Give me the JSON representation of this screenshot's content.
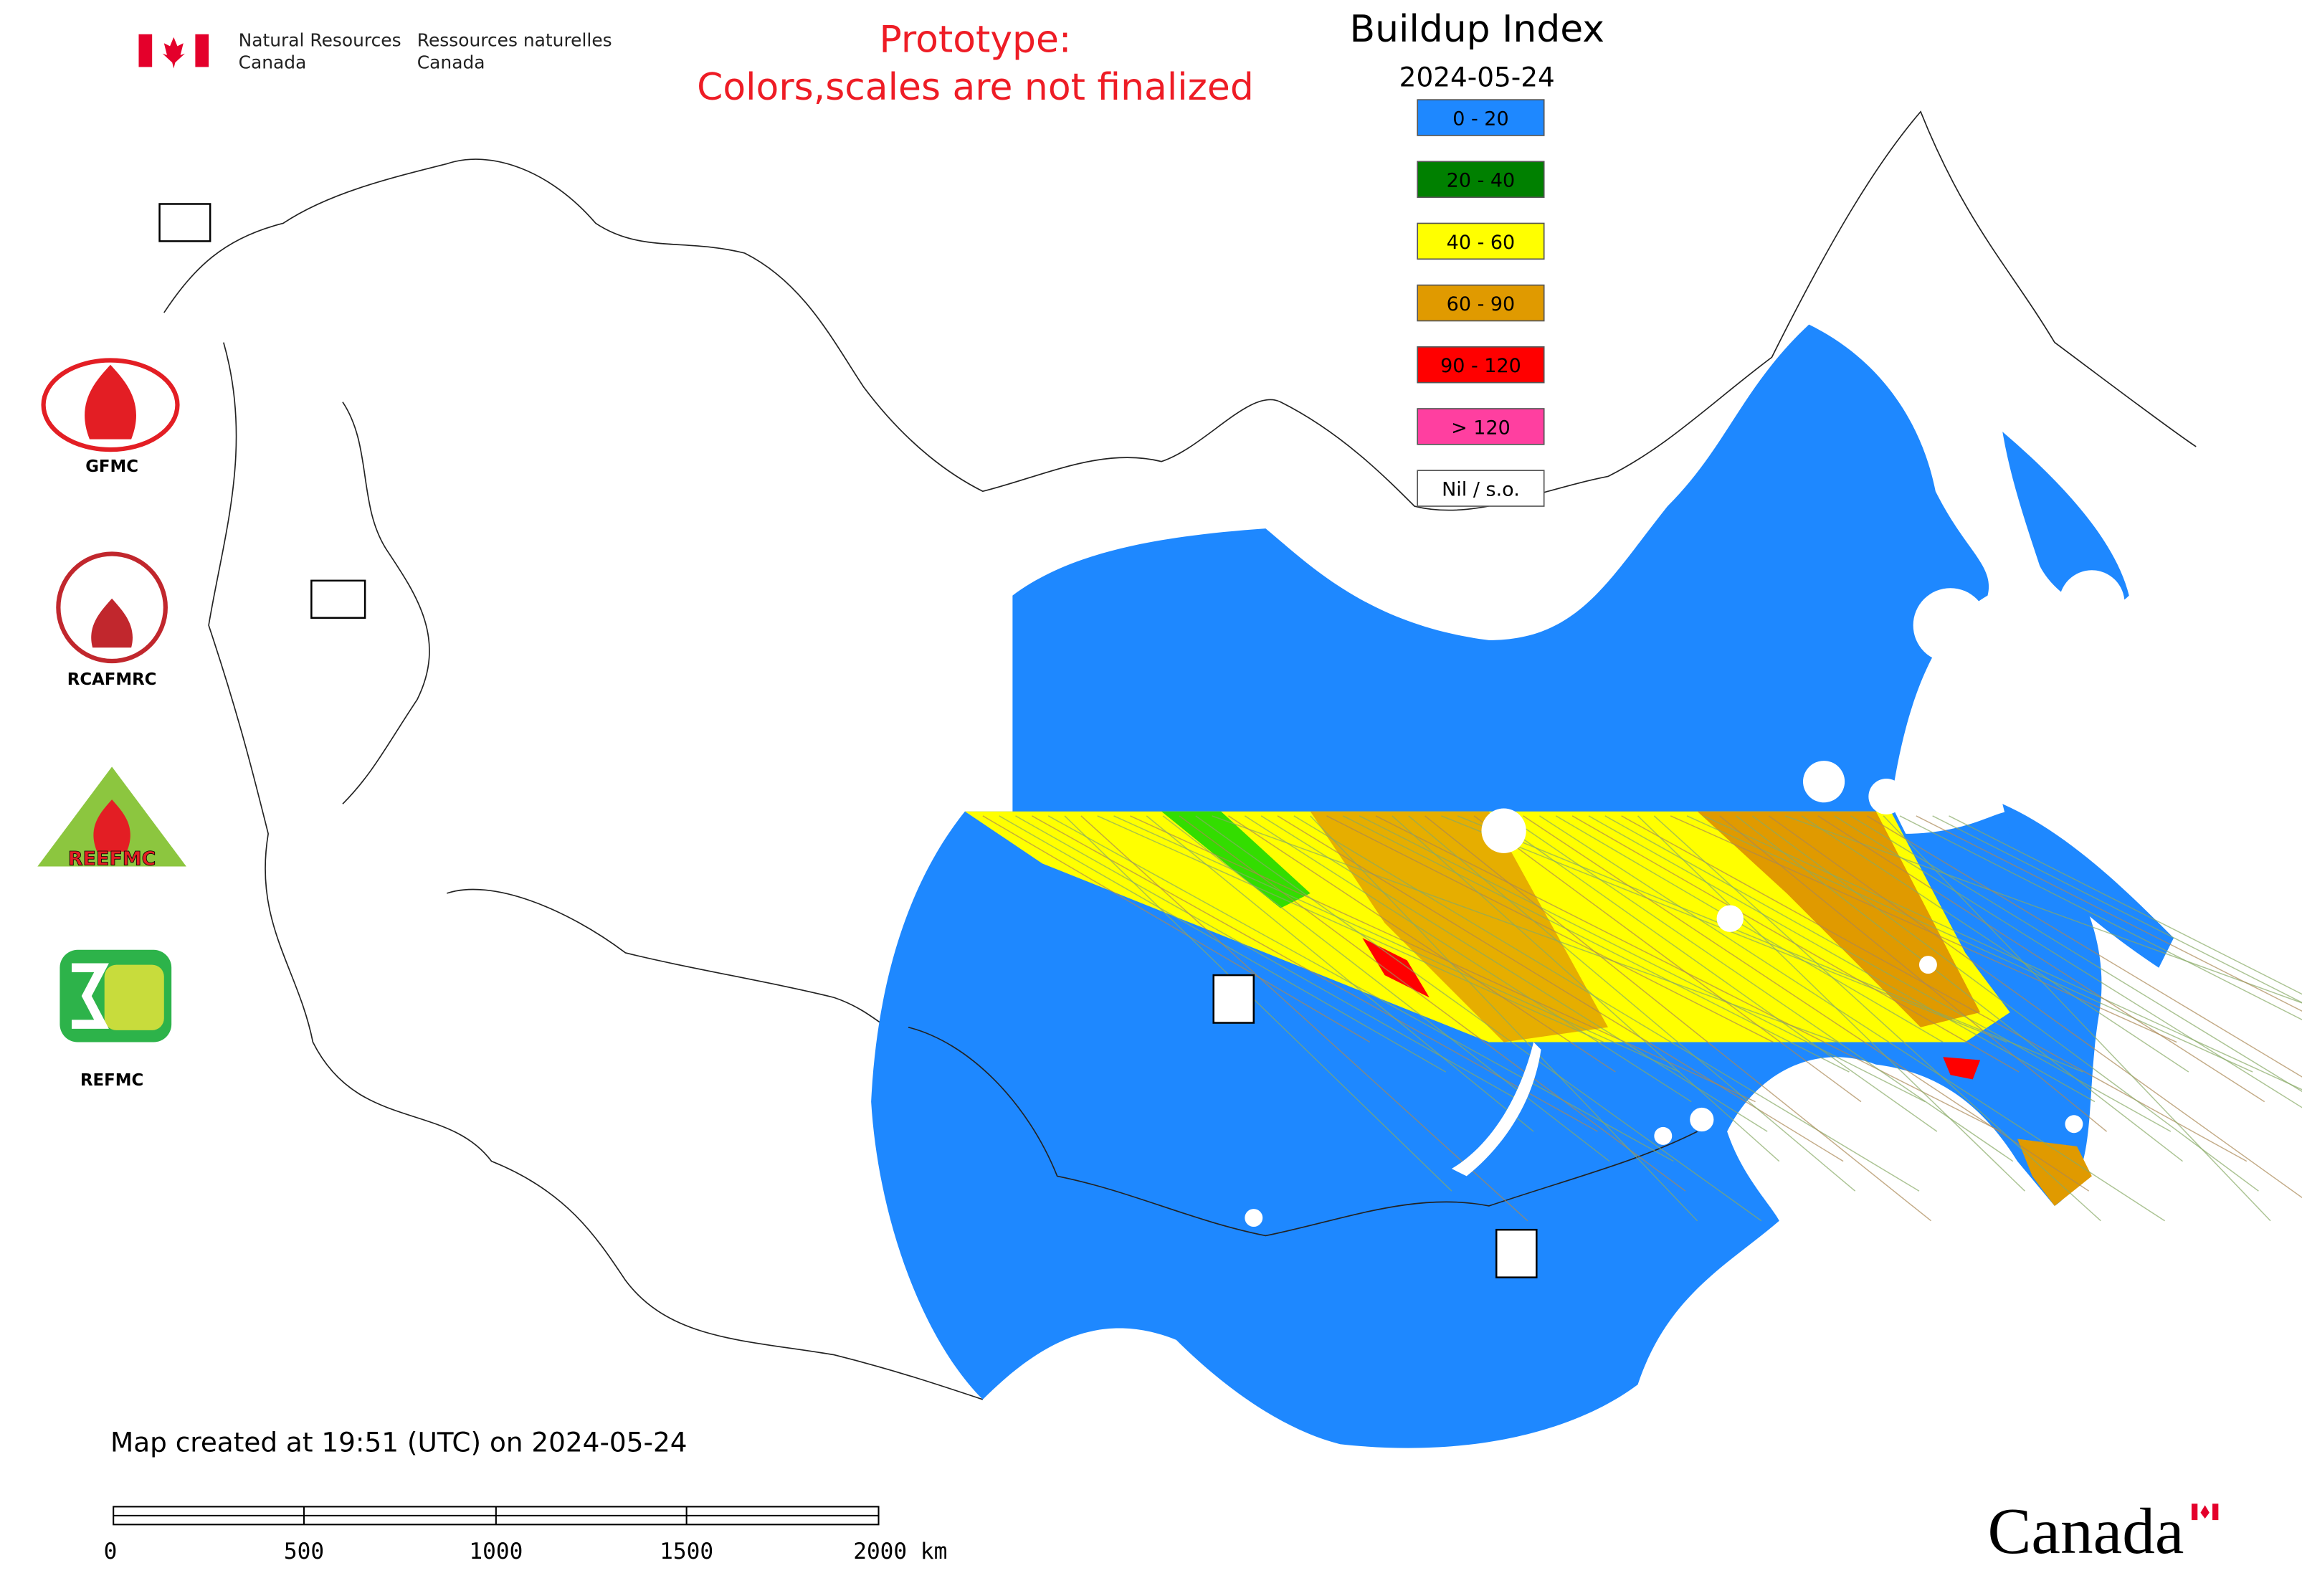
{
  "header": {
    "agency_en": [
      "Natural Resources",
      "Canada"
    ],
    "agency_fr": [
      "Ressources naturelles",
      "Canada"
    ],
    "notice": [
      "Prototype:",
      "Colors,scales are not finalized"
    ]
  },
  "map": {
    "title": "Buildup Index",
    "date": "2024-05-24",
    "legend": [
      {
        "label": "0 - 20",
        "color": "#1e88ff"
      },
      {
        "label": "20 - 40",
        "color": "#008000"
      },
      {
        "label": "40 - 60",
        "color": "#ffff00"
      },
      {
        "label": "60 - 90",
        "color": "#e09a00"
      },
      {
        "label": "90 - 120",
        "color": "#ff0000"
      },
      {
        "label": "> 120",
        "color": "#ff3fa0"
      },
      {
        "label": "Nil / s.o.",
        "color": "#ffffff"
      }
    ]
  },
  "logos": [
    "GFMC",
    "RCAFMRC",
    "REEFMC",
    "REFMC"
  ],
  "footer": {
    "created": "Map created at 19:51 (UTC) on 2024-05-24",
    "scale_labels": [
      "0",
      "500",
      "1000",
      "1500",
      "2000 km"
    ],
    "wordmark": "Canada"
  }
}
